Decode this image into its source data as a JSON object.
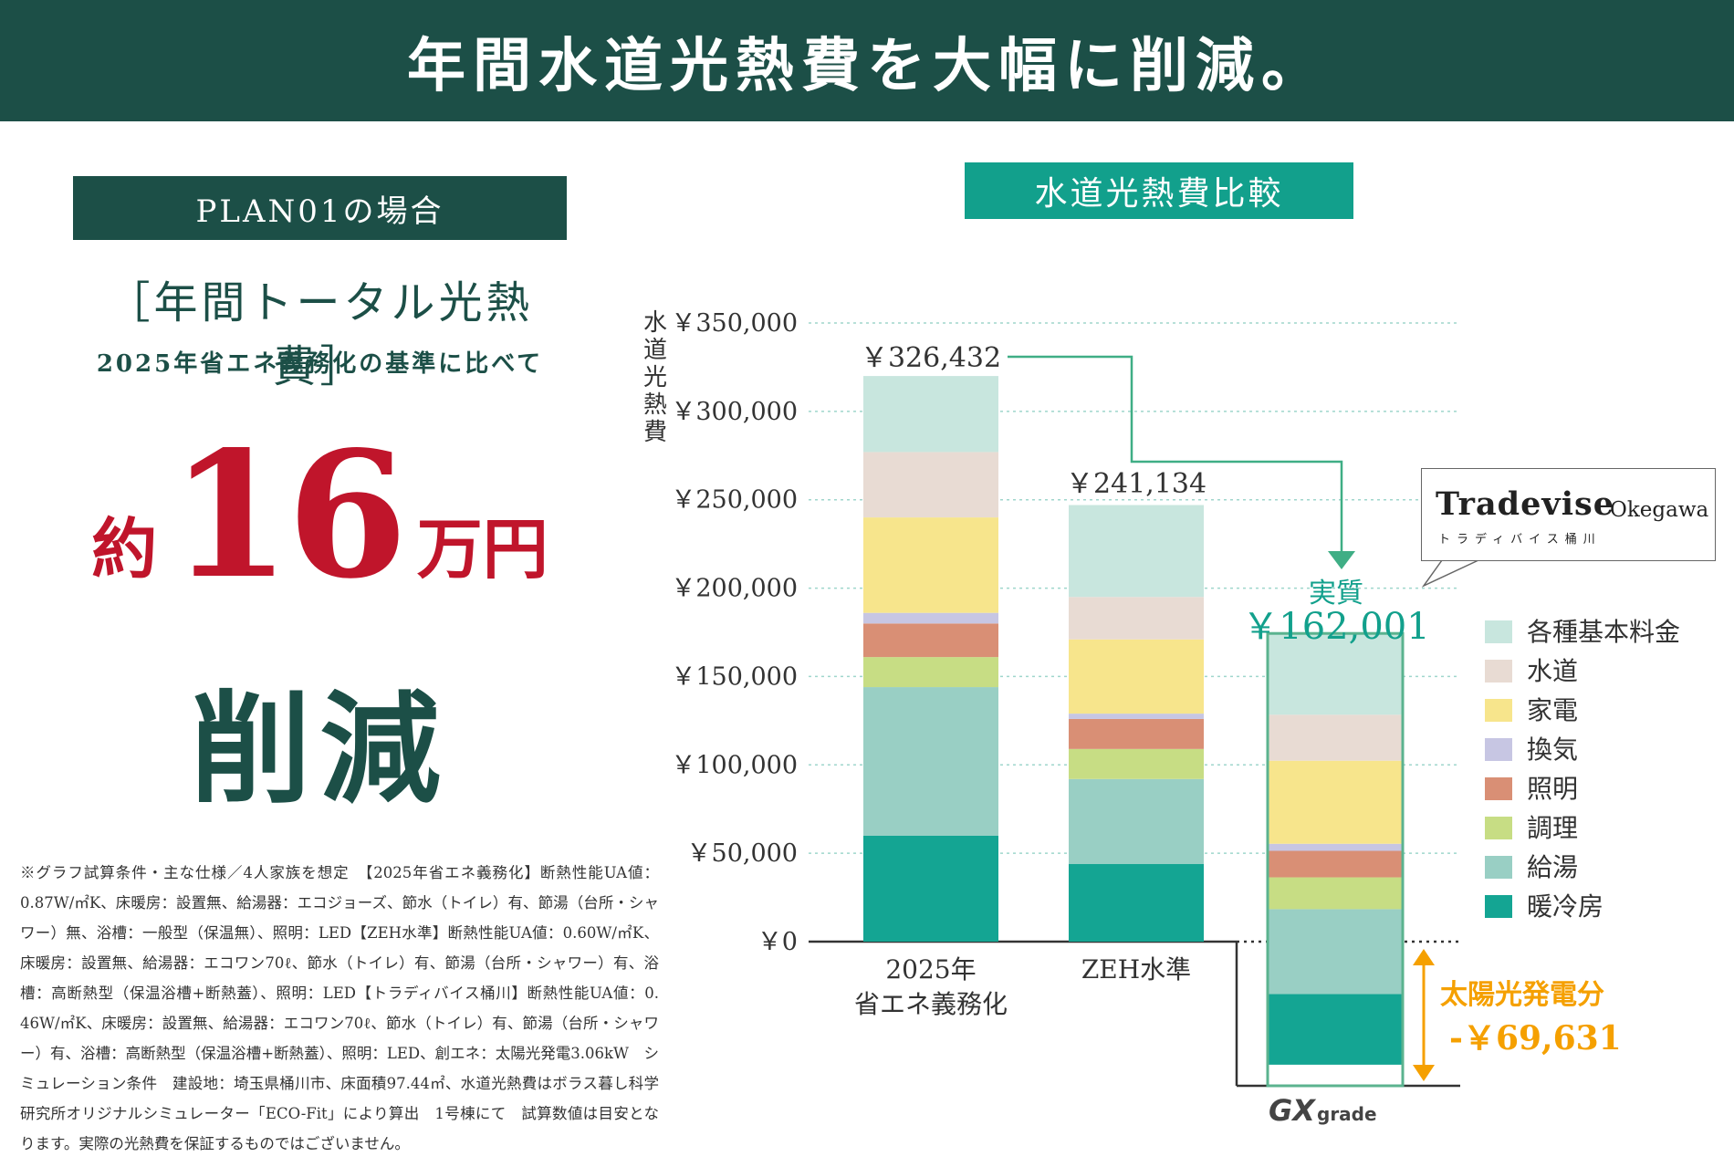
{
  "header": {
    "title": "年間水道光熱費を大幅に削減。"
  },
  "left": {
    "plan_label": "PLAN01の場合",
    "total_label": "［年間トータル光熱費］",
    "subtext": "2025年省エネ義務化の基準に比べて",
    "amount_prefix": "約",
    "amount_number": "16",
    "amount_unit": "万円",
    "reduce_label": "削減",
    "notes": "※グラフ試算条件・主な仕様／4人家族を想定　【2025年省エネ義務化】断熱性能UA値：0.87W/㎡K、床暖房：設置無、給湯器：エコジョーズ、節水（トイレ）有、節湯（台所・シャワー）無、浴槽：一般型（保温無）、照明：LED【ZEH水準】断熱性能UA値：0.60W/㎡K、床暖房：設置無、給湯器：エコワン70ℓ、節水（トイレ）有、節湯（台所・シャワー）有、浴槽：高断熱型（保温浴槽+断熱蓋）、照明：LED【トラディバイス桶川】断熱性能UA値：0. 46W/㎡K、床暖房：設置無、給湯器：エコワン70ℓ、節水（トイレ）有、節湯（台所・シャワー）有、浴槽：高断熱型（保温浴槽+断熱蓋）、照明：LED、創エネ：太陽光発電3.06kW　シミュレーション条件　建設地：埼玉県桶川市、床面積97.44㎡、水道光熱費はボラス暮し科学研究所オリジナルシミュレーター「ECO-Fit」により算出　1号棟にて　試算数値は目安となります。実際の光熱費を保証するものではございません。"
  },
  "brand": {
    "name": "Tradevise",
    "location": "Okegawa",
    "kana": "トラディバイス桶川"
  },
  "chart_data": {
    "type": "bar",
    "title": "水道光熱費比較",
    "ylabel": "水道光熱費",
    "ylim": [
      0,
      350000
    ],
    "yticks": [
      0,
      50000,
      100000,
      150000,
      200000,
      250000,
      300000,
      350000
    ],
    "ytick_labels": [
      "￥0",
      "￥50,000",
      "￥100,000",
      "￥150,000",
      "￥200,000",
      "￥250,000",
      "￥300,000",
      "￥350,000"
    ],
    "grid": true,
    "legend_position": "right",
    "categories": [
      "2025年\n省エネ義務化",
      "ZEH水準",
      ""
    ],
    "totals": [
      "￥326,432",
      "￥241,134",
      "￥162,001"
    ],
    "series": [
      {
        "name": "暖冷房",
        "color": "#14a593",
        "values": [
          60000,
          44000,
          40000
        ]
      },
      {
        "name": "給湯",
        "color": "#99cfc4",
        "values": [
          84000,
          48000,
          48000
        ]
      },
      {
        "name": "調理",
        "color": "#c7dd84",
        "values": [
          17000,
          17000,
          18000
        ]
      },
      {
        "name": "照明",
        "color": "#d98f75",
        "values": [
          19000,
          17000,
          15000
        ]
      },
      {
        "name": "換気",
        "color": "#c7c6e3",
        "values": [
          6000,
          3000,
          4000
        ]
      },
      {
        "name": "家電",
        "color": "#f7e58c",
        "values": [
          54000,
          42000,
          47000
        ]
      },
      {
        "name": "水道",
        "color": "#e8dbd3",
        "values": [
          37000,
          24000,
          26000
        ]
      },
      {
        "name": "各種基本料金",
        "color": "#c8e6de",
        "values": [
          43000,
          52000,
          46000
        ]
      }
    ],
    "gx_bar": {
      "net_label": "実質",
      "net_value": "￥162,001",
      "solar_label": "太陽光発電分",
      "solar_value": "-￥69,631",
      "badge_main": "GX",
      "badge_sub": "grade"
    }
  }
}
